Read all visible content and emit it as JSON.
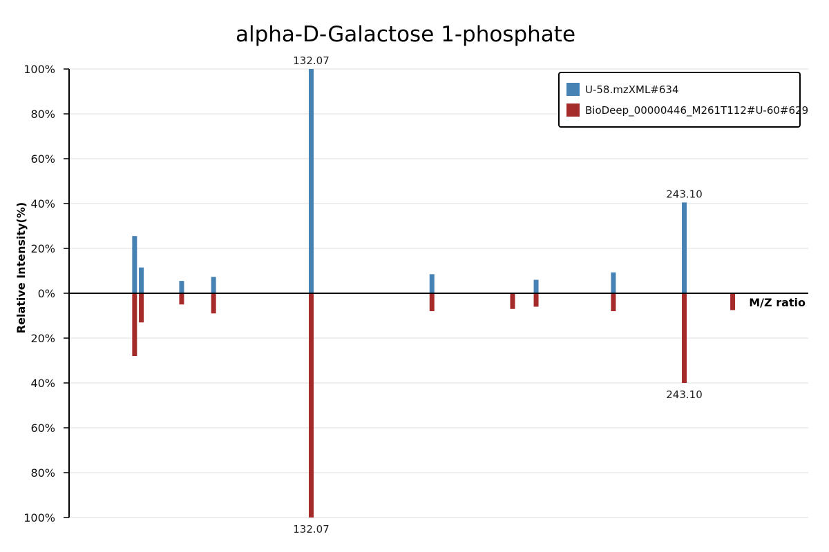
{
  "chart_data": {
    "type": "bar",
    "title": "alpha-D-Galactose 1-phosphate",
    "xlabel": "M/Z ratio",
    "ylabel": "Relative Intensity(%)",
    "ylim": [
      -100,
      100
    ],
    "y_ticks": [
      "100%",
      "80%",
      "60%",
      "40%",
      "20%",
      "0%",
      "20%",
      "40%",
      "60%",
      "80%",
      "100%"
    ],
    "x_range": [
      60.0,
      280.0
    ],
    "grid": true,
    "legend_position": "top-right",
    "colors": {
      "sample": "#4682b4",
      "reference": "#a52a2a"
    },
    "series": [
      {
        "name": "U-58.mzXML#634",
        "direction": "up",
        "color": "#4682b4",
        "points": [
          {
            "x": 79.5,
            "y": 25.5
          },
          {
            "x": 81.5,
            "y": 11.5
          },
          {
            "x": 93.5,
            "y": 5.5
          },
          {
            "x": 103.0,
            "y": 7.3
          },
          {
            "x": 132.07,
            "y": 100,
            "label": "132.07"
          },
          {
            "x": 168.0,
            "y": 8.5
          },
          {
            "x": 199.0,
            "y": 6.0
          },
          {
            "x": 222.0,
            "y": 9.3
          },
          {
            "x": 243.1,
            "y": 40.5,
            "label": "243.10"
          }
        ]
      },
      {
        "name": "BioDeep_00000446_M261T112#U-60#629",
        "direction": "down",
        "color": "#a52a2a",
        "points": [
          {
            "x": 79.5,
            "y": 28.0
          },
          {
            "x": 81.5,
            "y": 13.0
          },
          {
            "x": 93.5,
            "y": 5.0
          },
          {
            "x": 103.0,
            "y": 9.0
          },
          {
            "x": 132.07,
            "y": 100,
            "label": "132.07"
          },
          {
            "x": 168.0,
            "y": 8.0
          },
          {
            "x": 192.0,
            "y": 7.0
          },
          {
            "x": 199.0,
            "y": 6.0
          },
          {
            "x": 222.0,
            "y": 8.0
          },
          {
            "x": 243.1,
            "y": 40.0,
            "label": "243.10"
          },
          {
            "x": 257.5,
            "y": 7.5
          }
        ]
      }
    ]
  }
}
